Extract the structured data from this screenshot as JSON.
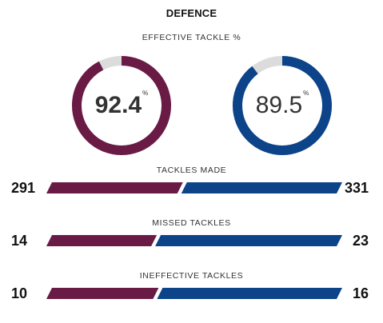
{
  "section": {
    "title": "DEFENCE"
  },
  "effective": {
    "label": "EFFECTIVE TACKLE %",
    "home": {
      "value": "92.4",
      "fraction": 0.924,
      "color": "#6a1b45"
    },
    "away": {
      "value": "89.5",
      "fraction": 0.895,
      "color": "#0c4389"
    },
    "percent_symbol": "%",
    "track_color": "#dcdcdc"
  },
  "stats": [
    {
      "label": "TACKLES MADE",
      "home": "291",
      "away": "331",
      "home_value": 291,
      "away_value": 331
    },
    {
      "label": "MISSED TACKLES",
      "home": "14",
      "away": "23",
      "home_value": 14,
      "away_value": 23
    },
    {
      "label": "INEFFECTIVE TACKLES",
      "home": "10",
      "away": "16",
      "home_value": 10,
      "away_value": 16
    }
  ],
  "colors": {
    "home": "#6a1b45",
    "away": "#0c4389"
  }
}
